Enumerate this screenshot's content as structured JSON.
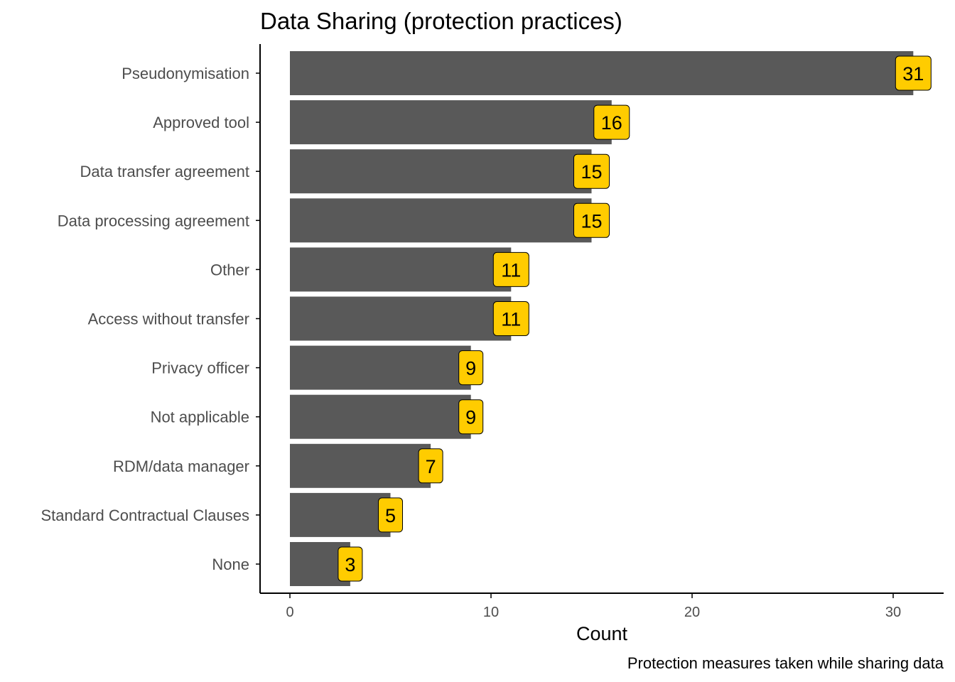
{
  "chart_data": {
    "type": "bar",
    "orientation": "horizontal",
    "title": "Data Sharing (protection practices)",
    "xlabel": "Count",
    "ylabel": "",
    "caption": "Protection measures taken while sharing data",
    "categories": [
      "Pseudonymisation",
      "Approved tool",
      "Data transfer agreement",
      "Data processing agreement",
      "Other",
      "Access without transfer",
      "Privacy officer",
      "Not applicable",
      "RDM/data manager",
      "Standard Contractual Clauses",
      "None"
    ],
    "values": [
      31,
      16,
      15,
      15,
      11,
      11,
      9,
      9,
      7,
      5,
      3
    ],
    "xlim": [
      0,
      31
    ],
    "xticks": [
      0,
      10,
      20,
      30
    ],
    "grid": false,
    "legend": "none",
    "colors": {
      "bar": "#595959",
      "label_fill": "#FFCC00",
      "label_border": "#000000",
      "axis": "#000000",
      "tick_text": "#4d4d4d"
    }
  }
}
